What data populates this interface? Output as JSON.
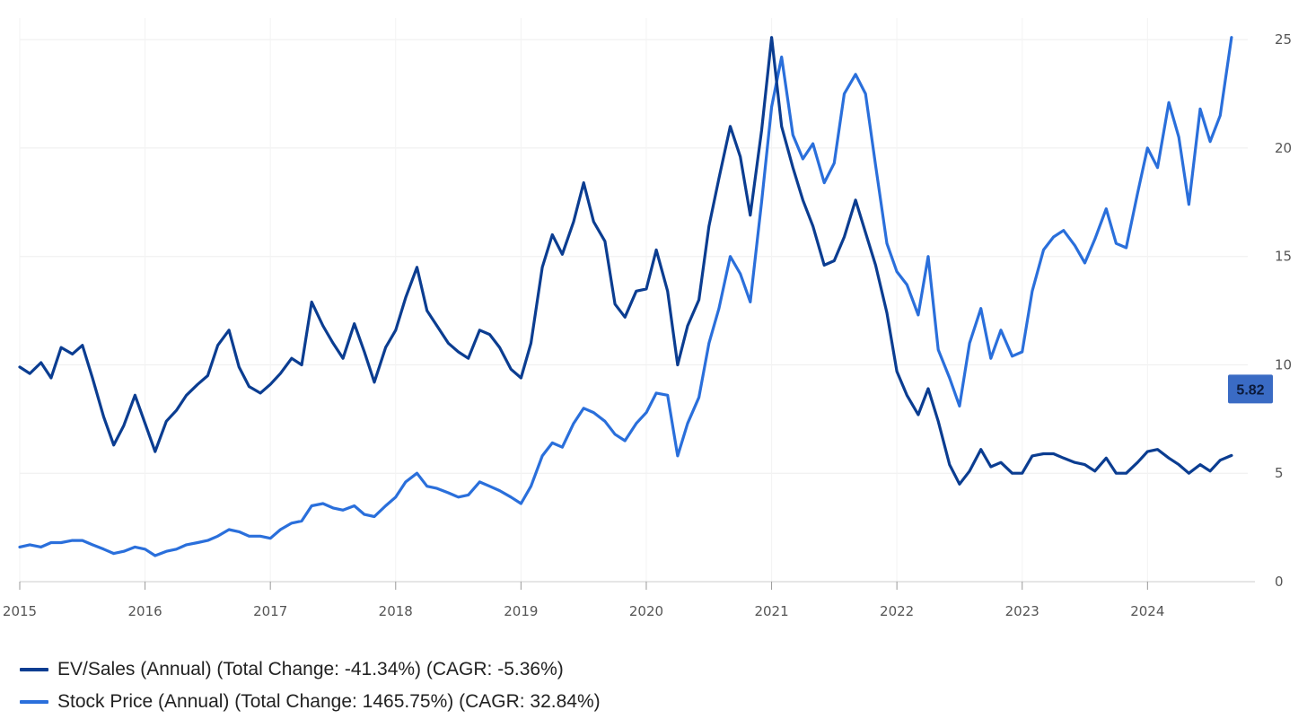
{
  "chart_data": {
    "type": "line",
    "title": "",
    "xlabel": "",
    "ylabel": "",
    "x_ticks": [
      "2015",
      "2016",
      "2017",
      "2018",
      "2019",
      "2020",
      "2021",
      "2022",
      "2023",
      "2024"
    ],
    "y_ticks": [
      "0",
      "5",
      "10",
      "15",
      "20",
      "25"
    ],
    "xlim": [
      2015.0,
      2024.8
    ],
    "ylim": [
      0,
      26
    ],
    "y_axis_side": "right",
    "grid": true,
    "legend_position": "bottom-left",
    "current_value_badge": "5.82",
    "series": [
      {
        "name": "EV/Sales (Annual) (Total Change: -41.34%) (CAGR: -5.36%)",
        "color": "#0b3d91",
        "points": [
          [
            2015.0,
            9.9
          ],
          [
            2015.08,
            9.6
          ],
          [
            2015.17,
            10.1
          ],
          [
            2015.25,
            9.4
          ],
          [
            2015.33,
            10.8
          ],
          [
            2015.42,
            10.5
          ],
          [
            2015.5,
            10.9
          ],
          [
            2015.58,
            9.4
          ],
          [
            2015.67,
            7.6
          ],
          [
            2015.75,
            6.3
          ],
          [
            2015.83,
            7.2
          ],
          [
            2015.92,
            8.6
          ],
          [
            2016.0,
            7.3
          ],
          [
            2016.08,
            6.0
          ],
          [
            2016.17,
            7.4
          ],
          [
            2016.25,
            7.9
          ],
          [
            2016.33,
            8.6
          ],
          [
            2016.42,
            9.1
          ],
          [
            2016.5,
            9.5
          ],
          [
            2016.58,
            10.9
          ],
          [
            2016.67,
            11.6
          ],
          [
            2016.75,
            9.9
          ],
          [
            2016.83,
            9.0
          ],
          [
            2016.92,
            8.7
          ],
          [
            2017.0,
            9.1
          ],
          [
            2017.08,
            9.6
          ],
          [
            2017.17,
            10.3
          ],
          [
            2017.25,
            10.0
          ],
          [
            2017.33,
            12.9
          ],
          [
            2017.42,
            11.8
          ],
          [
            2017.5,
            11.0
          ],
          [
            2017.58,
            10.3
          ],
          [
            2017.67,
            11.9
          ],
          [
            2017.75,
            10.6
          ],
          [
            2017.83,
            9.2
          ],
          [
            2017.92,
            10.8
          ],
          [
            2018.0,
            11.6
          ],
          [
            2018.08,
            13.1
          ],
          [
            2018.17,
            14.5
          ],
          [
            2018.25,
            12.5
          ],
          [
            2018.33,
            11.8
          ],
          [
            2018.42,
            11.0
          ],
          [
            2018.5,
            10.6
          ],
          [
            2018.58,
            10.3
          ],
          [
            2018.67,
            11.6
          ],
          [
            2018.75,
            11.4
          ],
          [
            2018.83,
            10.8
          ],
          [
            2018.92,
            9.8
          ],
          [
            2019.0,
            9.4
          ],
          [
            2019.08,
            11.0
          ],
          [
            2019.17,
            14.5
          ],
          [
            2019.25,
            16.0
          ],
          [
            2019.33,
            15.1
          ],
          [
            2019.42,
            16.6
          ],
          [
            2019.5,
            18.4
          ],
          [
            2019.58,
            16.6
          ],
          [
            2019.67,
            15.7
          ],
          [
            2019.75,
            12.8
          ],
          [
            2019.83,
            12.2
          ],
          [
            2019.92,
            13.4
          ],
          [
            2020.0,
            13.5
          ],
          [
            2020.08,
            15.3
          ],
          [
            2020.17,
            13.4
          ],
          [
            2020.25,
            10.0
          ],
          [
            2020.33,
            11.8
          ],
          [
            2020.42,
            13.0
          ],
          [
            2020.5,
            16.4
          ],
          [
            2020.58,
            18.6
          ],
          [
            2020.67,
            21.0
          ],
          [
            2020.75,
            19.6
          ],
          [
            2020.83,
            16.9
          ],
          [
            2020.92,
            20.8
          ],
          [
            2021.0,
            25.1
          ],
          [
            2021.08,
            21.0
          ],
          [
            2021.17,
            19.1
          ],
          [
            2021.25,
            17.6
          ],
          [
            2021.33,
            16.4
          ],
          [
            2021.42,
            14.6
          ],
          [
            2021.5,
            14.8
          ],
          [
            2021.58,
            15.9
          ],
          [
            2021.67,
            17.6
          ],
          [
            2021.75,
            16.1
          ],
          [
            2021.83,
            14.6
          ],
          [
            2021.92,
            12.4
          ],
          [
            2022.0,
            9.7
          ],
          [
            2022.08,
            8.6
          ],
          [
            2022.17,
            7.7
          ],
          [
            2022.25,
            8.9
          ],
          [
            2022.33,
            7.4
          ],
          [
            2022.42,
            5.4
          ],
          [
            2022.5,
            4.5
          ],
          [
            2022.58,
            5.1
          ],
          [
            2022.67,
            6.1
          ],
          [
            2022.75,
            5.3
          ],
          [
            2022.83,
            5.5
          ],
          [
            2022.92,
            5.0
          ],
          [
            2023.0,
            5.0
          ],
          [
            2023.08,
            5.8
          ],
          [
            2023.17,
            5.9
          ],
          [
            2023.25,
            5.9
          ],
          [
            2023.33,
            5.7
          ],
          [
            2023.42,
            5.5
          ],
          [
            2023.5,
            5.4
          ],
          [
            2023.58,
            5.1
          ],
          [
            2023.67,
            5.7
          ],
          [
            2023.75,
            5.0
          ],
          [
            2023.83,
            5.0
          ],
          [
            2023.92,
            5.5
          ],
          [
            2024.0,
            6.0
          ],
          [
            2024.08,
            6.1
          ],
          [
            2024.17,
            5.7
          ],
          [
            2024.25,
            5.4
          ],
          [
            2024.33,
            5.0
          ],
          [
            2024.42,
            5.4
          ],
          [
            2024.5,
            5.1
          ],
          [
            2024.58,
            5.6
          ],
          [
            2024.67,
            5.82
          ]
        ]
      },
      {
        "name": "Stock Price (Annual) (Total Change: 1465.75%) (CAGR: 32.84%)",
        "color": "#2a6fdb",
        "points": [
          [
            2015.0,
            1.6
          ],
          [
            2015.08,
            1.7
          ],
          [
            2015.17,
            1.6
          ],
          [
            2015.25,
            1.8
          ],
          [
            2015.33,
            1.8
          ],
          [
            2015.42,
            1.9
          ],
          [
            2015.5,
            1.9
          ],
          [
            2015.58,
            1.7
          ],
          [
            2015.67,
            1.5
          ],
          [
            2015.75,
            1.3
          ],
          [
            2015.83,
            1.4
          ],
          [
            2015.92,
            1.6
          ],
          [
            2016.0,
            1.5
          ],
          [
            2016.08,
            1.2
          ],
          [
            2016.17,
            1.4
          ],
          [
            2016.25,
            1.5
          ],
          [
            2016.33,
            1.7
          ],
          [
            2016.42,
            1.8
          ],
          [
            2016.5,
            1.9
          ],
          [
            2016.58,
            2.1
          ],
          [
            2016.67,
            2.4
          ],
          [
            2016.75,
            2.3
          ],
          [
            2016.83,
            2.1
          ],
          [
            2016.92,
            2.1
          ],
          [
            2017.0,
            2.0
          ],
          [
            2017.08,
            2.4
          ],
          [
            2017.17,
            2.7
          ],
          [
            2017.25,
            2.8
          ],
          [
            2017.33,
            3.5
          ],
          [
            2017.42,
            3.6
          ],
          [
            2017.5,
            3.4
          ],
          [
            2017.58,
            3.3
          ],
          [
            2017.67,
            3.5
          ],
          [
            2017.75,
            3.1
          ],
          [
            2017.83,
            3.0
          ],
          [
            2017.92,
            3.5
          ],
          [
            2018.0,
            3.9
          ],
          [
            2018.08,
            4.6
          ],
          [
            2018.17,
            5.0
          ],
          [
            2018.25,
            4.4
          ],
          [
            2018.33,
            4.3
          ],
          [
            2018.42,
            4.1
          ],
          [
            2018.5,
            3.9
          ],
          [
            2018.58,
            4.0
          ],
          [
            2018.67,
            4.6
          ],
          [
            2018.75,
            4.4
          ],
          [
            2018.83,
            4.2
          ],
          [
            2018.92,
            3.9
          ],
          [
            2019.0,
            3.6
          ],
          [
            2019.08,
            4.4
          ],
          [
            2019.17,
            5.8
          ],
          [
            2019.25,
            6.4
          ],
          [
            2019.33,
            6.2
          ],
          [
            2019.42,
            7.3
          ],
          [
            2019.5,
            8.0
          ],
          [
            2019.58,
            7.8
          ],
          [
            2019.67,
            7.4
          ],
          [
            2019.75,
            6.8
          ],
          [
            2019.83,
            6.5
          ],
          [
            2019.92,
            7.3
          ],
          [
            2020.0,
            7.8
          ],
          [
            2020.08,
            8.7
          ],
          [
            2020.17,
            8.6
          ],
          [
            2020.25,
            5.8
          ],
          [
            2020.33,
            7.3
          ],
          [
            2020.42,
            8.5
          ],
          [
            2020.5,
            11.0
          ],
          [
            2020.58,
            12.6
          ],
          [
            2020.67,
            15.0
          ],
          [
            2020.75,
            14.2
          ],
          [
            2020.83,
            12.9
          ],
          [
            2020.92,
            17.5
          ],
          [
            2021.0,
            21.9
          ],
          [
            2021.08,
            24.2
          ],
          [
            2021.17,
            20.6
          ],
          [
            2021.25,
            19.5
          ],
          [
            2021.33,
            20.2
          ],
          [
            2021.42,
            18.4
          ],
          [
            2021.5,
            19.3
          ],
          [
            2021.58,
            22.5
          ],
          [
            2021.67,
            23.4
          ],
          [
            2021.75,
            22.5
          ],
          [
            2021.83,
            19.2
          ],
          [
            2021.92,
            15.6
          ],
          [
            2022.0,
            14.3
          ],
          [
            2022.08,
            13.7
          ],
          [
            2022.17,
            12.3
          ],
          [
            2022.25,
            15.0
          ],
          [
            2022.33,
            10.7
          ],
          [
            2022.42,
            9.4
          ],
          [
            2022.5,
            8.1
          ],
          [
            2022.58,
            11.0
          ],
          [
            2022.67,
            12.6
          ],
          [
            2022.75,
            10.3
          ],
          [
            2022.83,
            11.6
          ],
          [
            2022.92,
            10.4
          ],
          [
            2023.0,
            10.6
          ],
          [
            2023.08,
            13.4
          ],
          [
            2023.17,
            15.3
          ],
          [
            2023.25,
            15.9
          ],
          [
            2023.33,
            16.2
          ],
          [
            2023.42,
            15.5
          ],
          [
            2023.5,
            14.7
          ],
          [
            2023.58,
            15.8
          ],
          [
            2023.67,
            17.2
          ],
          [
            2023.75,
            15.6
          ],
          [
            2023.83,
            15.4
          ],
          [
            2023.92,
            17.9
          ],
          [
            2024.0,
            20.0
          ],
          [
            2024.08,
            19.1
          ],
          [
            2024.17,
            22.1
          ],
          [
            2024.25,
            20.5
          ],
          [
            2024.33,
            17.4
          ],
          [
            2024.42,
            21.8
          ],
          [
            2024.5,
            20.3
          ],
          [
            2024.58,
            21.5
          ],
          [
            2024.67,
            25.1
          ]
        ]
      }
    ]
  }
}
